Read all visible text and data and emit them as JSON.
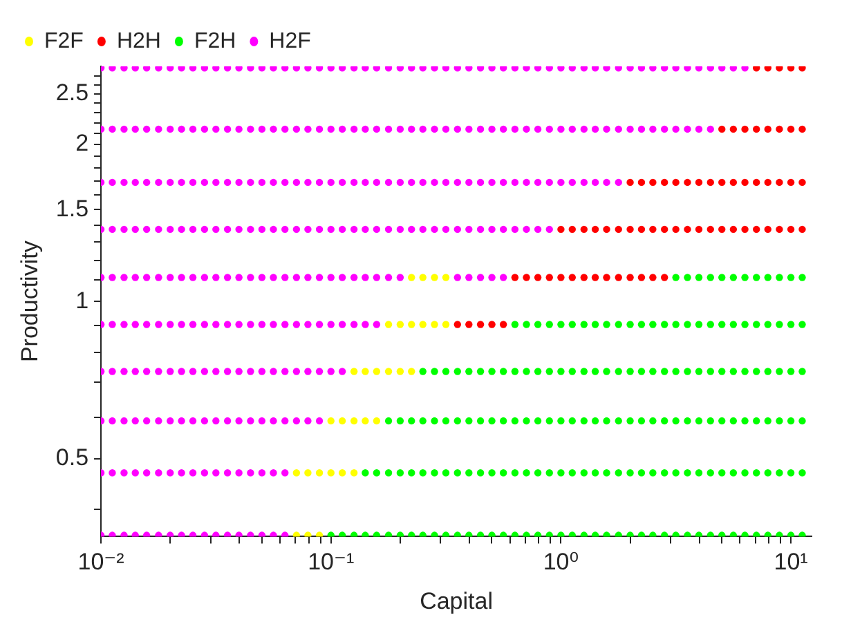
{
  "chart_data": {
    "type": "scatter",
    "xlabel": "Capital",
    "ylabel": "Productivity",
    "log": "xy",
    "xlim": [
      0.01,
      12.3
    ],
    "ylim": [
      0.355,
      2.82
    ],
    "xticks": [
      {
        "value": 0.01,
        "label": "10⁻²"
      },
      {
        "value": 0.02,
        "label": null
      },
      {
        "value": 0.03,
        "label": null
      },
      {
        "value": 0.04,
        "label": null
      },
      {
        "value": 0.05,
        "label": null
      },
      {
        "value": 0.06,
        "label": null
      },
      {
        "value": 0.07,
        "label": null
      },
      {
        "value": 0.08,
        "label": null
      },
      {
        "value": 0.09,
        "label": null
      },
      {
        "value": 0.1,
        "label": "10⁻¹"
      },
      {
        "value": 0.2,
        "label": null
      },
      {
        "value": 0.3,
        "label": null
      },
      {
        "value": 0.4,
        "label": null
      },
      {
        "value": 0.5,
        "label": null
      },
      {
        "value": 0.6,
        "label": null
      },
      {
        "value": 0.7,
        "label": null
      },
      {
        "value": 0.8,
        "label": null
      },
      {
        "value": 0.9,
        "label": null
      },
      {
        "value": 1,
        "label": "10⁰"
      },
      {
        "value": 2,
        "label": null
      },
      {
        "value": 3,
        "label": null
      },
      {
        "value": 4,
        "label": null
      },
      {
        "value": 5,
        "label": null
      },
      {
        "value": 6,
        "label": null
      },
      {
        "value": 7,
        "label": null
      },
      {
        "value": 8,
        "label": null
      },
      {
        "value": 9,
        "label": null
      },
      {
        "value": 10,
        "label": "10¹"
      }
    ],
    "yticks": [
      {
        "value": 0.4,
        "label": null
      },
      0.5,
      {
        "value": 0.6,
        "label": null
      },
      {
        "value": 0.7,
        "label": null
      },
      {
        "value": 0.8,
        "label": null
      },
      {
        "value": 0.9,
        "label": null
      },
      1,
      {
        "value": 1.1,
        "label": null
      },
      {
        "value": 1.2,
        "label": null
      },
      {
        "value": 1.3,
        "label": null
      },
      {
        "value": 1.4,
        "label": null
      },
      1.5,
      {
        "value": 1.6,
        "label": null
      },
      {
        "value": 1.7,
        "label": null
      },
      {
        "value": 1.8,
        "label": null
      },
      {
        "value": 1.9,
        "label": null
      },
      2,
      {
        "value": 2.1,
        "label": null
      },
      {
        "value": 2.2,
        "label": null
      },
      {
        "value": 2.3,
        "label": null
      },
      {
        "value": 2.4,
        "label": null
      },
      2.5,
      {
        "value": 2.6,
        "label": null
      },
      {
        "value": 2.7,
        "label": null
      }
    ],
    "grid": false,
    "legend": "top left",
    "marker": "circle",
    "series": [
      {
        "name": "F2F",
        "color": "#ffff00",
        "x": [
          0.0708,
          0.0794,
          0.0891,
          0.0708,
          0.0794,
          0.0891,
          0.1,
          0.112,
          0.126,
          0.1,
          0.112,
          0.126,
          0.141,
          0.158,
          0.126,
          0.141,
          0.158,
          0.178,
          0.2,
          0.224,
          0.178,
          0.2,
          0.224,
          0.251,
          0.282,
          0.316,
          0.224,
          0.251,
          0.282,
          0.316
        ],
        "values": [
          0.357,
          0.357,
          0.357,
          0.47,
          0.47,
          0.47,
          0.47,
          0.47,
          0.47,
          0.591,
          0.591,
          0.591,
          0.591,
          0.591,
          0.735,
          0.735,
          0.735,
          0.735,
          0.735,
          0.735,
          0.904,
          0.904,
          0.904,
          0.904,
          0.904,
          0.904,
          1.112,
          1.112,
          1.112,
          1.112
        ]
      },
      {
        "name": "H2H",
        "color": "#ff0000",
        "x": [
          0.355,
          0.398,
          0.447,
          0.501,
          0.562,
          0.631,
          0.708,
          0.794,
          0.891,
          1,
          1.12,
          1.26,
          1.41,
          1.58,
          1.78,
          2,
          2.24,
          2.51,
          2.82,
          1,
          1.12,
          1.26,
          1.41,
          1.58,
          1.78,
          2,
          2.24,
          2.51,
          2.82,
          3.16,
          3.55,
          3.98,
          4.47,
          5.01,
          5.62,
          6.31,
          7.08,
          7.94,
          8.91,
          10,
          11.2,
          2,
          2.24,
          2.51,
          2.82,
          3.16,
          3.55,
          3.98,
          4.47,
          5.01,
          5.62,
          6.31,
          7.08,
          7.94,
          8.91,
          10,
          11.2,
          5.01,
          5.62,
          6.31,
          7.08,
          7.94,
          8.91,
          10,
          11.2,
          7.08,
          7.94,
          8.91,
          10,
          11.2
        ],
        "values": [
          0.904,
          0.904,
          0.904,
          0.904,
          0.904,
          1.112,
          1.112,
          1.112,
          1.112,
          1.112,
          1.112,
          1.112,
          1.112,
          1.112,
          1.112,
          1.112,
          1.112,
          1.112,
          1.112,
          1.375,
          1.375,
          1.375,
          1.375,
          1.375,
          1.375,
          1.375,
          1.375,
          1.375,
          1.375,
          1.375,
          1.375,
          1.375,
          1.375,
          1.375,
          1.375,
          1.375,
          1.375,
          1.375,
          1.375,
          1.375,
          1.375,
          1.691,
          1.691,
          1.691,
          1.691,
          1.691,
          1.691,
          1.691,
          1.691,
          1.691,
          1.691,
          1.691,
          1.691,
          1.691,
          1.691,
          1.691,
          1.691,
          2.138,
          2.138,
          2.138,
          2.138,
          2.138,
          2.138,
          2.138,
          2.138,
          2.8,
          2.8,
          2.8,
          2.8,
          2.8
        ]
      },
      {
        "name": "F2H",
        "color": "#00ff00",
        "x": [
          0.1,
          0.112,
          0.126,
          0.141,
          0.158,
          0.178,
          0.2,
          0.224,
          0.251,
          0.282,
          0.316,
          0.355,
          0.398,
          0.447,
          0.501,
          0.562,
          0.631,
          0.708,
          0.794,
          0.891,
          1,
          1.12,
          1.26,
          1.41,
          1.58,
          1.78,
          2,
          2.24,
          2.51,
          2.82,
          3.16,
          3.55,
          3.98,
          4.47,
          5.01,
          5.62,
          6.31,
          7.08,
          7.94,
          8.91,
          10,
          11.2,
          0.141,
          0.158,
          0.178,
          0.2,
          0.224,
          0.251,
          0.282,
          0.316,
          0.355,
          0.398,
          0.447,
          0.501,
          0.562,
          0.631,
          0.708,
          0.794,
          0.891,
          1,
          1.12,
          1.26,
          1.41,
          1.58,
          1.78,
          2,
          2.24,
          2.51,
          2.82,
          3.16,
          3.55,
          3.98,
          4.47,
          5.01,
          5.62,
          6.31,
          7.08,
          7.94,
          8.91,
          10,
          11.2,
          0.178,
          0.2,
          0.224,
          0.251,
          0.282,
          0.316,
          0.355,
          0.398,
          0.447,
          0.501,
          0.562,
          0.631,
          0.708,
          0.794,
          0.891,
          1,
          1.12,
          1.26,
          1.41,
          1.58,
          1.78,
          2,
          2.24,
          2.51,
          2.82,
          3.16,
          3.55,
          3.98,
          4.47,
          5.01,
          5.62,
          6.31,
          7.08,
          7.94,
          8.91,
          10,
          11.2,
          0.251,
          0.282,
          0.316,
          0.355,
          0.398,
          0.447,
          0.501,
          0.562,
          0.631,
          0.708,
          0.794,
          0.891,
          1,
          1.12,
          1.26,
          1.41,
          1.58,
          1.78,
          2,
          2.24,
          2.51,
          2.82,
          3.16,
          3.55,
          3.98,
          4.47,
          5.01,
          5.62,
          6.31,
          7.08,
          7.94,
          8.91,
          10,
          11.2,
          0.631,
          0.708,
          0.794,
          0.891,
          1,
          1.12,
          1.26,
          1.41,
          1.58,
          1.78,
          2,
          2.24,
          2.51,
          2.82,
          3.16,
          3.55,
          3.98,
          4.47,
          5.01,
          5.62,
          6.31,
          7.08,
          7.94,
          8.91,
          10,
          11.2,
          3.16,
          3.55,
          3.98,
          4.47,
          5.01,
          5.62,
          6.31,
          7.08,
          7.94,
          8.91,
          10,
          11.2
        ],
        "values": [
          0.357,
          0.357,
          0.357,
          0.357,
          0.357,
          0.357,
          0.357,
          0.357,
          0.357,
          0.357,
          0.357,
          0.357,
          0.357,
          0.357,
          0.357,
          0.357,
          0.357,
          0.357,
          0.357,
          0.357,
          0.357,
          0.357,
          0.357,
          0.357,
          0.357,
          0.357,
          0.357,
          0.357,
          0.357,
          0.357,
          0.357,
          0.357,
          0.357,
          0.357,
          0.357,
          0.357,
          0.357,
          0.357,
          0.357,
          0.357,
          0.357,
          0.357,
          0.47,
          0.47,
          0.47,
          0.47,
          0.47,
          0.47,
          0.47,
          0.47,
          0.47,
          0.47,
          0.47,
          0.47,
          0.47,
          0.47,
          0.47,
          0.47,
          0.47,
          0.47,
          0.47,
          0.47,
          0.47,
          0.47,
          0.47,
          0.47,
          0.47,
          0.47,
          0.47,
          0.47,
          0.47,
          0.47,
          0.47,
          0.47,
          0.47,
          0.47,
          0.47,
          0.47,
          0.47,
          0.47,
          0.47,
          0.591,
          0.591,
          0.591,
          0.591,
          0.591,
          0.591,
          0.591,
          0.591,
          0.591,
          0.591,
          0.591,
          0.591,
          0.591,
          0.591,
          0.591,
          0.591,
          0.591,
          0.591,
          0.591,
          0.591,
          0.591,
          0.591,
          0.591,
          0.591,
          0.591,
          0.591,
          0.591,
          0.591,
          0.591,
          0.591,
          0.591,
          0.591,
          0.591,
          0.591,
          0.591,
          0.591,
          0.591,
          0.735,
          0.735,
          0.735,
          0.735,
          0.735,
          0.735,
          0.735,
          0.735,
          0.735,
          0.735,
          0.735,
          0.735,
          0.735,
          0.735,
          0.735,
          0.735,
          0.735,
          0.735,
          0.735,
          0.735,
          0.735,
          0.735,
          0.735,
          0.735,
          0.735,
          0.735,
          0.735,
          0.735,
          0.735,
          0.735,
          0.735,
          0.735,
          0.735,
          0.735,
          0.904,
          0.904,
          0.904,
          0.904,
          0.904,
          0.904,
          0.904,
          0.904,
          0.904,
          0.904,
          0.904,
          0.904,
          0.904,
          0.904,
          0.904,
          0.904,
          0.904,
          0.904,
          0.904,
          0.904,
          0.904,
          0.904,
          0.904,
          0.904,
          0.904,
          0.904,
          1.112,
          1.112,
          1.112,
          1.112,
          1.112,
          1.112,
          1.112,
          1.112,
          1.112,
          1.112,
          1.112,
          1.112
        ]
      },
      {
        "name": "H2F",
        "color": "#ff00ff",
        "x": [
          0.01,
          0.0112,
          0.0126,
          0.0141,
          0.0158,
          0.0178,
          0.02,
          0.0224,
          0.0251,
          0.0282,
          0.0316,
          0.0355,
          0.0398,
          0.0447,
          0.0501,
          0.0562,
          0.0631,
          0.01,
          0.0112,
          0.0126,
          0.0141,
          0.0158,
          0.0178,
          0.02,
          0.0224,
          0.0251,
          0.0282,
          0.0316,
          0.0355,
          0.0398,
          0.0447,
          0.0501,
          0.0562,
          0.0631,
          0.01,
          0.0112,
          0.0126,
          0.0141,
          0.0158,
          0.0178,
          0.02,
          0.0224,
          0.0251,
          0.0282,
          0.0316,
          0.0355,
          0.0398,
          0.0447,
          0.0501,
          0.0562,
          0.0631,
          0.0708,
          0.0794,
          0.0891,
          0.01,
          0.0112,
          0.0126,
          0.0141,
          0.0158,
          0.0178,
          0.02,
          0.0224,
          0.0251,
          0.0282,
          0.0316,
          0.0355,
          0.0398,
          0.0447,
          0.0501,
          0.0562,
          0.0631,
          0.0708,
          0.0794,
          0.0891,
          0.1,
          0.112,
          0.01,
          0.0112,
          0.0126,
          0.0141,
          0.0158,
          0.0178,
          0.02,
          0.0224,
          0.0251,
          0.0282,
          0.0316,
          0.0355,
          0.0398,
          0.0447,
          0.0501,
          0.0562,
          0.0631,
          0.0708,
          0.0794,
          0.0891,
          0.1,
          0.112,
          0.126,
          0.141,
          0.158,
          0.01,
          0.0112,
          0.0126,
          0.0141,
          0.0158,
          0.0178,
          0.02,
          0.0224,
          0.0251,
          0.0282,
          0.0316,
          0.0355,
          0.0398,
          0.0447,
          0.0501,
          0.0562,
          0.0631,
          0.0708,
          0.0794,
          0.0891,
          0.1,
          0.112,
          0.126,
          0.141,
          0.158,
          0.178,
          0.2,
          0.355,
          0.398,
          0.447,
          0.501,
          0.562,
          0.01,
          0.0112,
          0.0126,
          0.0141,
          0.0158,
          0.0178,
          0.02,
          0.0224,
          0.0251,
          0.0282,
          0.0316,
          0.0355,
          0.0398,
          0.0447,
          0.0501,
          0.0562,
          0.0631,
          0.0708,
          0.0794,
          0.0891,
          0.1,
          0.112,
          0.126,
          0.141,
          0.158,
          0.178,
          0.2,
          0.224,
          0.251,
          0.282,
          0.316,
          0.355,
          0.398,
          0.447,
          0.501,
          0.562,
          0.631,
          0.708,
          0.794,
          0.891,
          0.01,
          0.0112,
          0.0126,
          0.0141,
          0.0158,
          0.0178,
          0.02,
          0.0224,
          0.0251,
          0.0282,
          0.0316,
          0.0355,
          0.0398,
          0.0447,
          0.0501,
          0.0562,
          0.0631,
          0.0708,
          0.0794,
          0.0891,
          0.1,
          0.112,
          0.126,
          0.141,
          0.158,
          0.178,
          0.2,
          0.224,
          0.251,
          0.282,
          0.316,
          0.355,
          0.398,
          0.447,
          0.501,
          0.562,
          0.631,
          0.708,
          0.794,
          0.891,
          1,
          1.12,
          1.26,
          1.41,
          1.58,
          1.78,
          0.01,
          0.0112,
          0.0126,
          0.0141,
          0.0158,
          0.0178,
          0.02,
          0.0224,
          0.0251,
          0.0282,
          0.0316,
          0.0355,
          0.0398,
          0.0447,
          0.0501,
          0.0562,
          0.0631,
          0.0708,
          0.0794,
          0.0891,
          0.1,
          0.112,
          0.126,
          0.141,
          0.158,
          0.178,
          0.2,
          0.224,
          0.251,
          0.282,
          0.316,
          0.355,
          0.398,
          0.447,
          0.501,
          0.562,
          0.631,
          0.708,
          0.794,
          0.891,
          1,
          1.12,
          1.26,
          1.41,
          1.58,
          1.78,
          2,
          2.24,
          2.51,
          2.82,
          3.16,
          3.55,
          3.98,
          4.47,
          0.01,
          0.0112,
          0.0126,
          0.0141,
          0.0158,
          0.0178,
          0.02,
          0.0224,
          0.0251,
          0.0282,
          0.0316,
          0.0355,
          0.0398,
          0.0447,
          0.0501,
          0.0562,
          0.0631,
          0.0708,
          0.0794,
          0.0891,
          0.1,
          0.112,
          0.126,
          0.141,
          0.158,
          0.178,
          0.2,
          0.224,
          0.251,
          0.282,
          0.316,
          0.355,
          0.398,
          0.447,
          0.501,
          0.562,
          0.631,
          0.708,
          0.794,
          0.891,
          1,
          1.12,
          1.26,
          1.41,
          1.58,
          1.78,
          2,
          2.24,
          2.51,
          2.82,
          3.16,
          3.55,
          3.98,
          4.47,
          5.01,
          5.62,
          6.31
        ],
        "values": [
          0.357,
          0.357,
          0.357,
          0.357,
          0.357,
          0.357,
          0.357,
          0.357,
          0.357,
          0.357,
          0.357,
          0.357,
          0.357,
          0.357,
          0.357,
          0.357,
          0.357,
          0.47,
          0.47,
          0.47,
          0.47,
          0.47,
          0.47,
          0.47,
          0.47,
          0.47,
          0.47,
          0.47,
          0.47,
          0.47,
          0.47,
          0.47,
          0.47,
          0.47,
          0.591,
          0.591,
          0.591,
          0.591,
          0.591,
          0.591,
          0.591,
          0.591,
          0.591,
          0.591,
          0.591,
          0.591,
          0.591,
          0.591,
          0.591,
          0.591,
          0.591,
          0.591,
          0.591,
          0.591,
          0.735,
          0.735,
          0.735,
          0.735,
          0.735,
          0.735,
          0.735,
          0.735,
          0.735,
          0.735,
          0.735,
          0.735,
          0.735,
          0.735,
          0.735,
          0.735,
          0.735,
          0.735,
          0.735,
          0.735,
          0.735,
          0.735,
          0.904,
          0.904,
          0.904,
          0.904,
          0.904,
          0.904,
          0.904,
          0.904,
          0.904,
          0.904,
          0.904,
          0.904,
          0.904,
          0.904,
          0.904,
          0.904,
          0.904,
          0.904,
          0.904,
          0.904,
          0.904,
          0.904,
          0.904,
          0.904,
          0.904,
          1.112,
          1.112,
          1.112,
          1.112,
          1.112,
          1.112,
          1.112,
          1.112,
          1.112,
          1.112,
          1.112,
          1.112,
          1.112,
          1.112,
          1.112,
          1.112,
          1.112,
          1.112,
          1.112,
          1.112,
          1.112,
          1.112,
          1.112,
          1.112,
          1.112,
          1.112,
          1.112,
          1.112,
          1.112,
          1.112,
          1.112,
          1.112,
          1.375,
          1.375,
          1.375,
          1.375,
          1.375,
          1.375,
          1.375,
          1.375,
          1.375,
          1.375,
          1.375,
          1.375,
          1.375,
          1.375,
          1.375,
          1.375,
          1.375,
          1.375,
          1.375,
          1.375,
          1.375,
          1.375,
          1.375,
          1.375,
          1.375,
          1.375,
          1.375,
          1.375,
          1.375,
          1.375,
          1.375,
          1.375,
          1.375,
          1.375,
          1.375,
          1.375,
          1.375,
          1.375,
          1.375,
          1.375,
          1.691,
          1.691,
          1.691,
          1.691,
          1.691,
          1.691,
          1.691,
          1.691,
          1.691,
          1.691,
          1.691,
          1.691,
          1.691,
          1.691,
          1.691,
          1.691,
          1.691,
          1.691,
          1.691,
          1.691,
          1.691,
          1.691,
          1.691,
          1.691,
          1.691,
          1.691,
          1.691,
          1.691,
          1.691,
          1.691,
          1.691,
          1.691,
          1.691,
          1.691,
          1.691,
          1.691,
          1.691,
          1.691,
          1.691,
          1.691,
          1.691,
          1.691,
          1.691,
          1.691,
          1.691,
          1.691,
          2.138,
          2.138,
          2.138,
          2.138,
          2.138,
          2.138,
          2.138,
          2.138,
          2.138,
          2.138,
          2.138,
          2.138,
          2.138,
          2.138,
          2.138,
          2.138,
          2.138,
          2.138,
          2.138,
          2.138,
          2.138,
          2.138,
          2.138,
          2.138,
          2.138,
          2.138,
          2.138,
          2.138,
          2.138,
          2.138,
          2.138,
          2.138,
          2.138,
          2.138,
          2.138,
          2.138,
          2.138,
          2.138,
          2.138,
          2.138,
          2.138,
          2.138,
          2.138,
          2.138,
          2.138,
          2.138,
          2.138,
          2.138,
          2.138,
          2.138,
          2.138,
          2.138,
          2.138,
          2.138,
          2.8,
          2.8,
          2.8,
          2.8,
          2.8,
          2.8,
          2.8,
          2.8,
          2.8,
          2.8,
          2.8,
          2.8,
          2.8,
          2.8,
          2.8,
          2.8,
          2.8,
          2.8,
          2.8,
          2.8,
          2.8,
          2.8,
          2.8,
          2.8,
          2.8,
          2.8,
          2.8,
          2.8,
          2.8,
          2.8,
          2.8,
          2.8,
          2.8,
          2.8,
          2.8,
          2.8,
          2.8,
          2.8,
          2.8,
          2.8,
          2.8,
          2.8,
          2.8,
          2.8,
          2.8,
          2.8,
          2.8,
          2.8,
          2.8,
          2.8,
          2.8,
          2.8,
          2.8,
          2.8,
          2.8,
          2.8,
          2.8
        ]
      }
    ]
  }
}
